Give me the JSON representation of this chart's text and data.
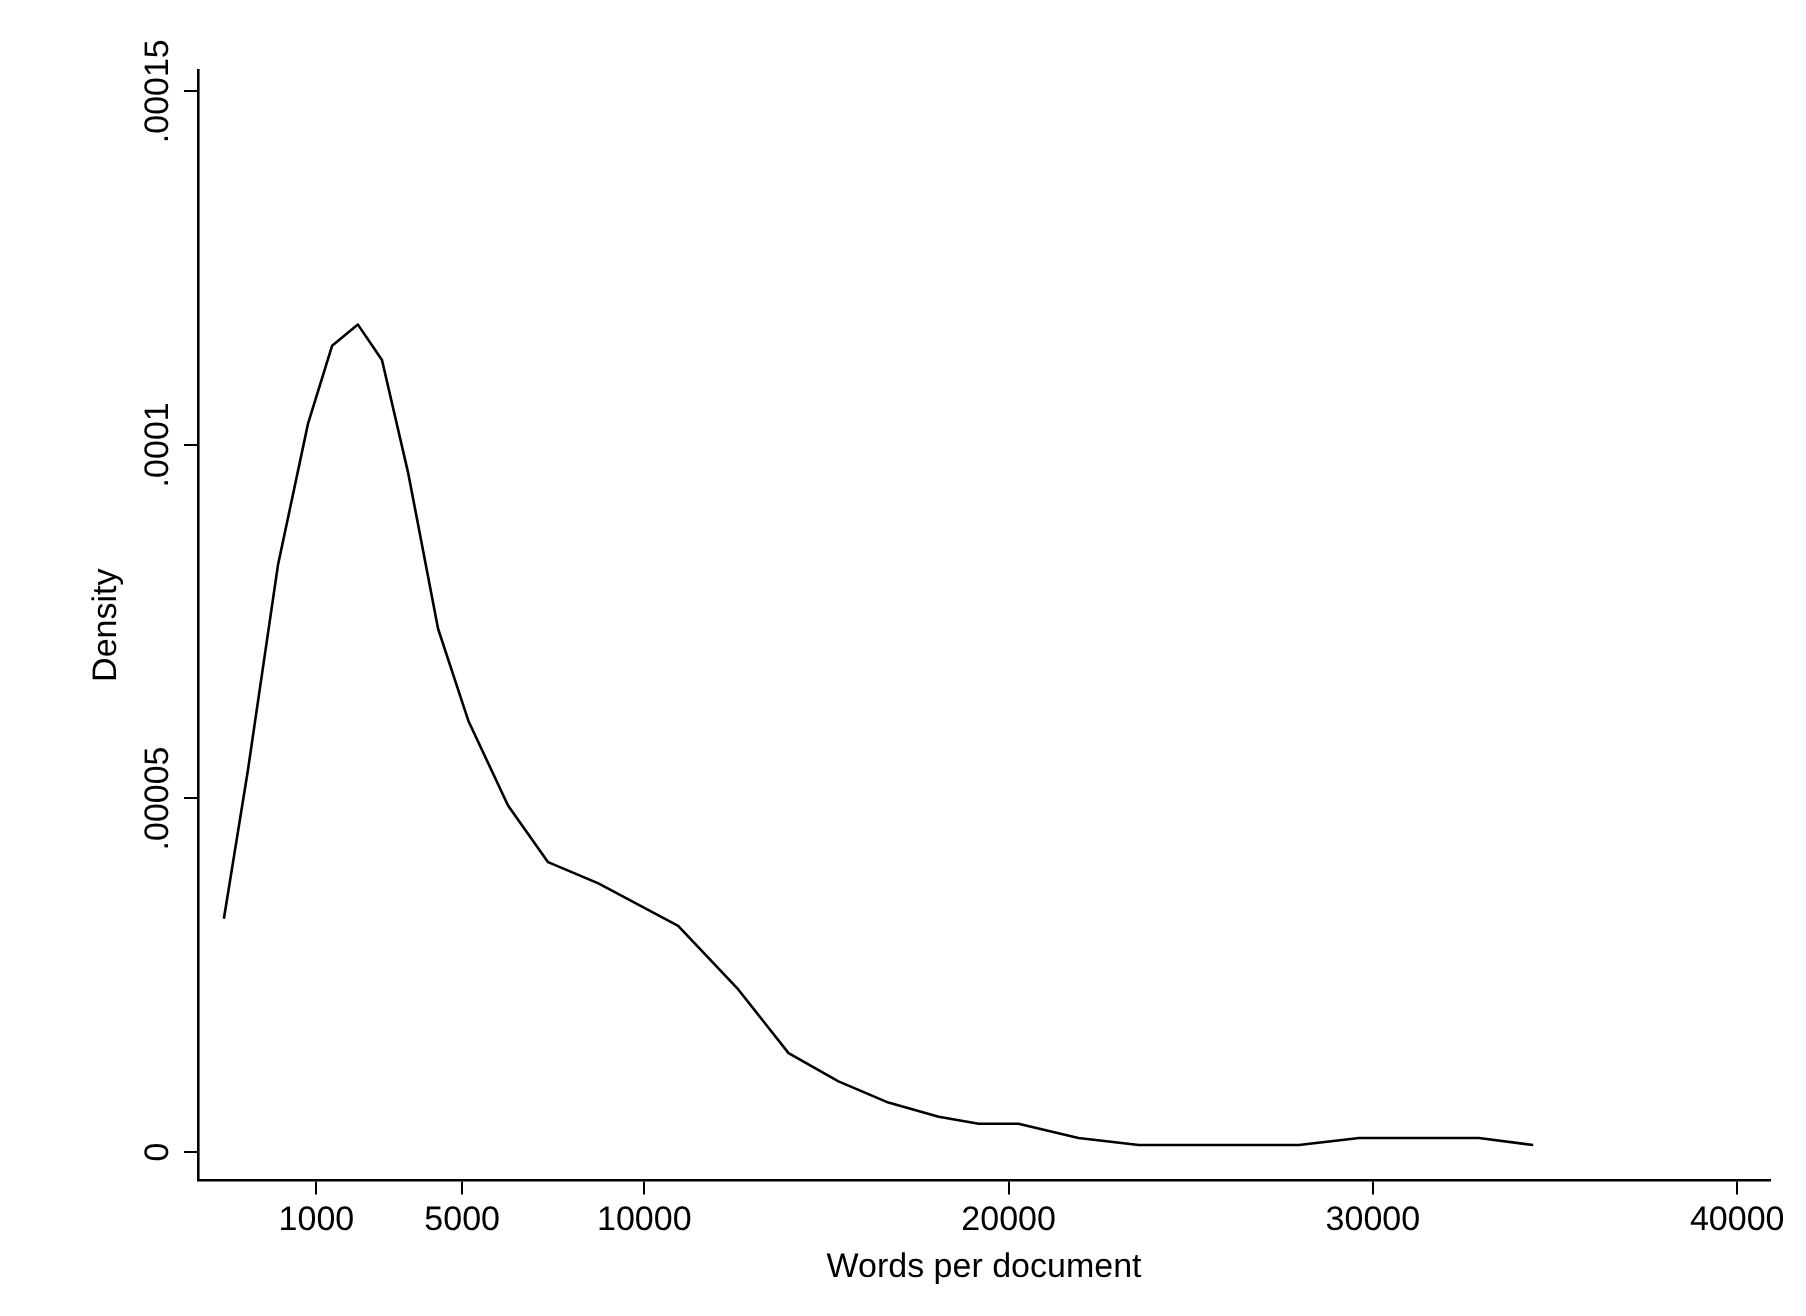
{
  "chart_data": {
    "type": "line",
    "xlabel": "Words per document",
    "ylabel": "Density",
    "xlim": [
      -2250,
      40900
    ],
    "ylim": [
      -4e-06,
      0.000153
    ],
    "xticks": [
      1000,
      5000,
      10000,
      20000,
      30000,
      40000
    ],
    "yticks": [
      0,
      {
        "value": 5e-05,
        "label": ".00005"
      },
      {
        "value": 0.0001,
        "label": ".0001"
      },
      {
        "value": 0.00015,
        "label": ".00015"
      }
    ],
    "grid": false,
    "legend": false,
    "marker": "none",
    "line_style": "solid",
    "series": [
      {
        "color": "#000000",
        "x": [
          -1540,
          -880,
          -55,
          770,
          1430,
          2140,
          2800,
          3520,
          4340,
          5170,
          6260,
          7360,
          8740,
          10930,
          12580,
          13960,
          15330,
          16700,
          18080,
          19180,
          20270,
          21920,
          23570,
          24950,
          26320,
          27970,
          29620,
          31260,
          32910,
          34400
        ],
        "values": [
          3.3e-05,
          5.4e-05,
          8.3e-05,
          0.000103,
          0.000114,
          0.000117,
          0.000112,
          9.6e-05,
          7.4e-05,
          6.1e-05,
          4.9e-05,
          4.1e-05,
          3.8e-05,
          3.2e-05,
          2.3e-05,
          1.4e-05,
          1e-05,
          7e-06,
          5e-06,
          4e-06,
          4e-06,
          2e-06,
          1e-06,
          1e-06,
          1e-06,
          1e-06,
          2e-06,
          2e-06,
          2e-06,
          1e-06
        ]
      }
    ]
  }
}
